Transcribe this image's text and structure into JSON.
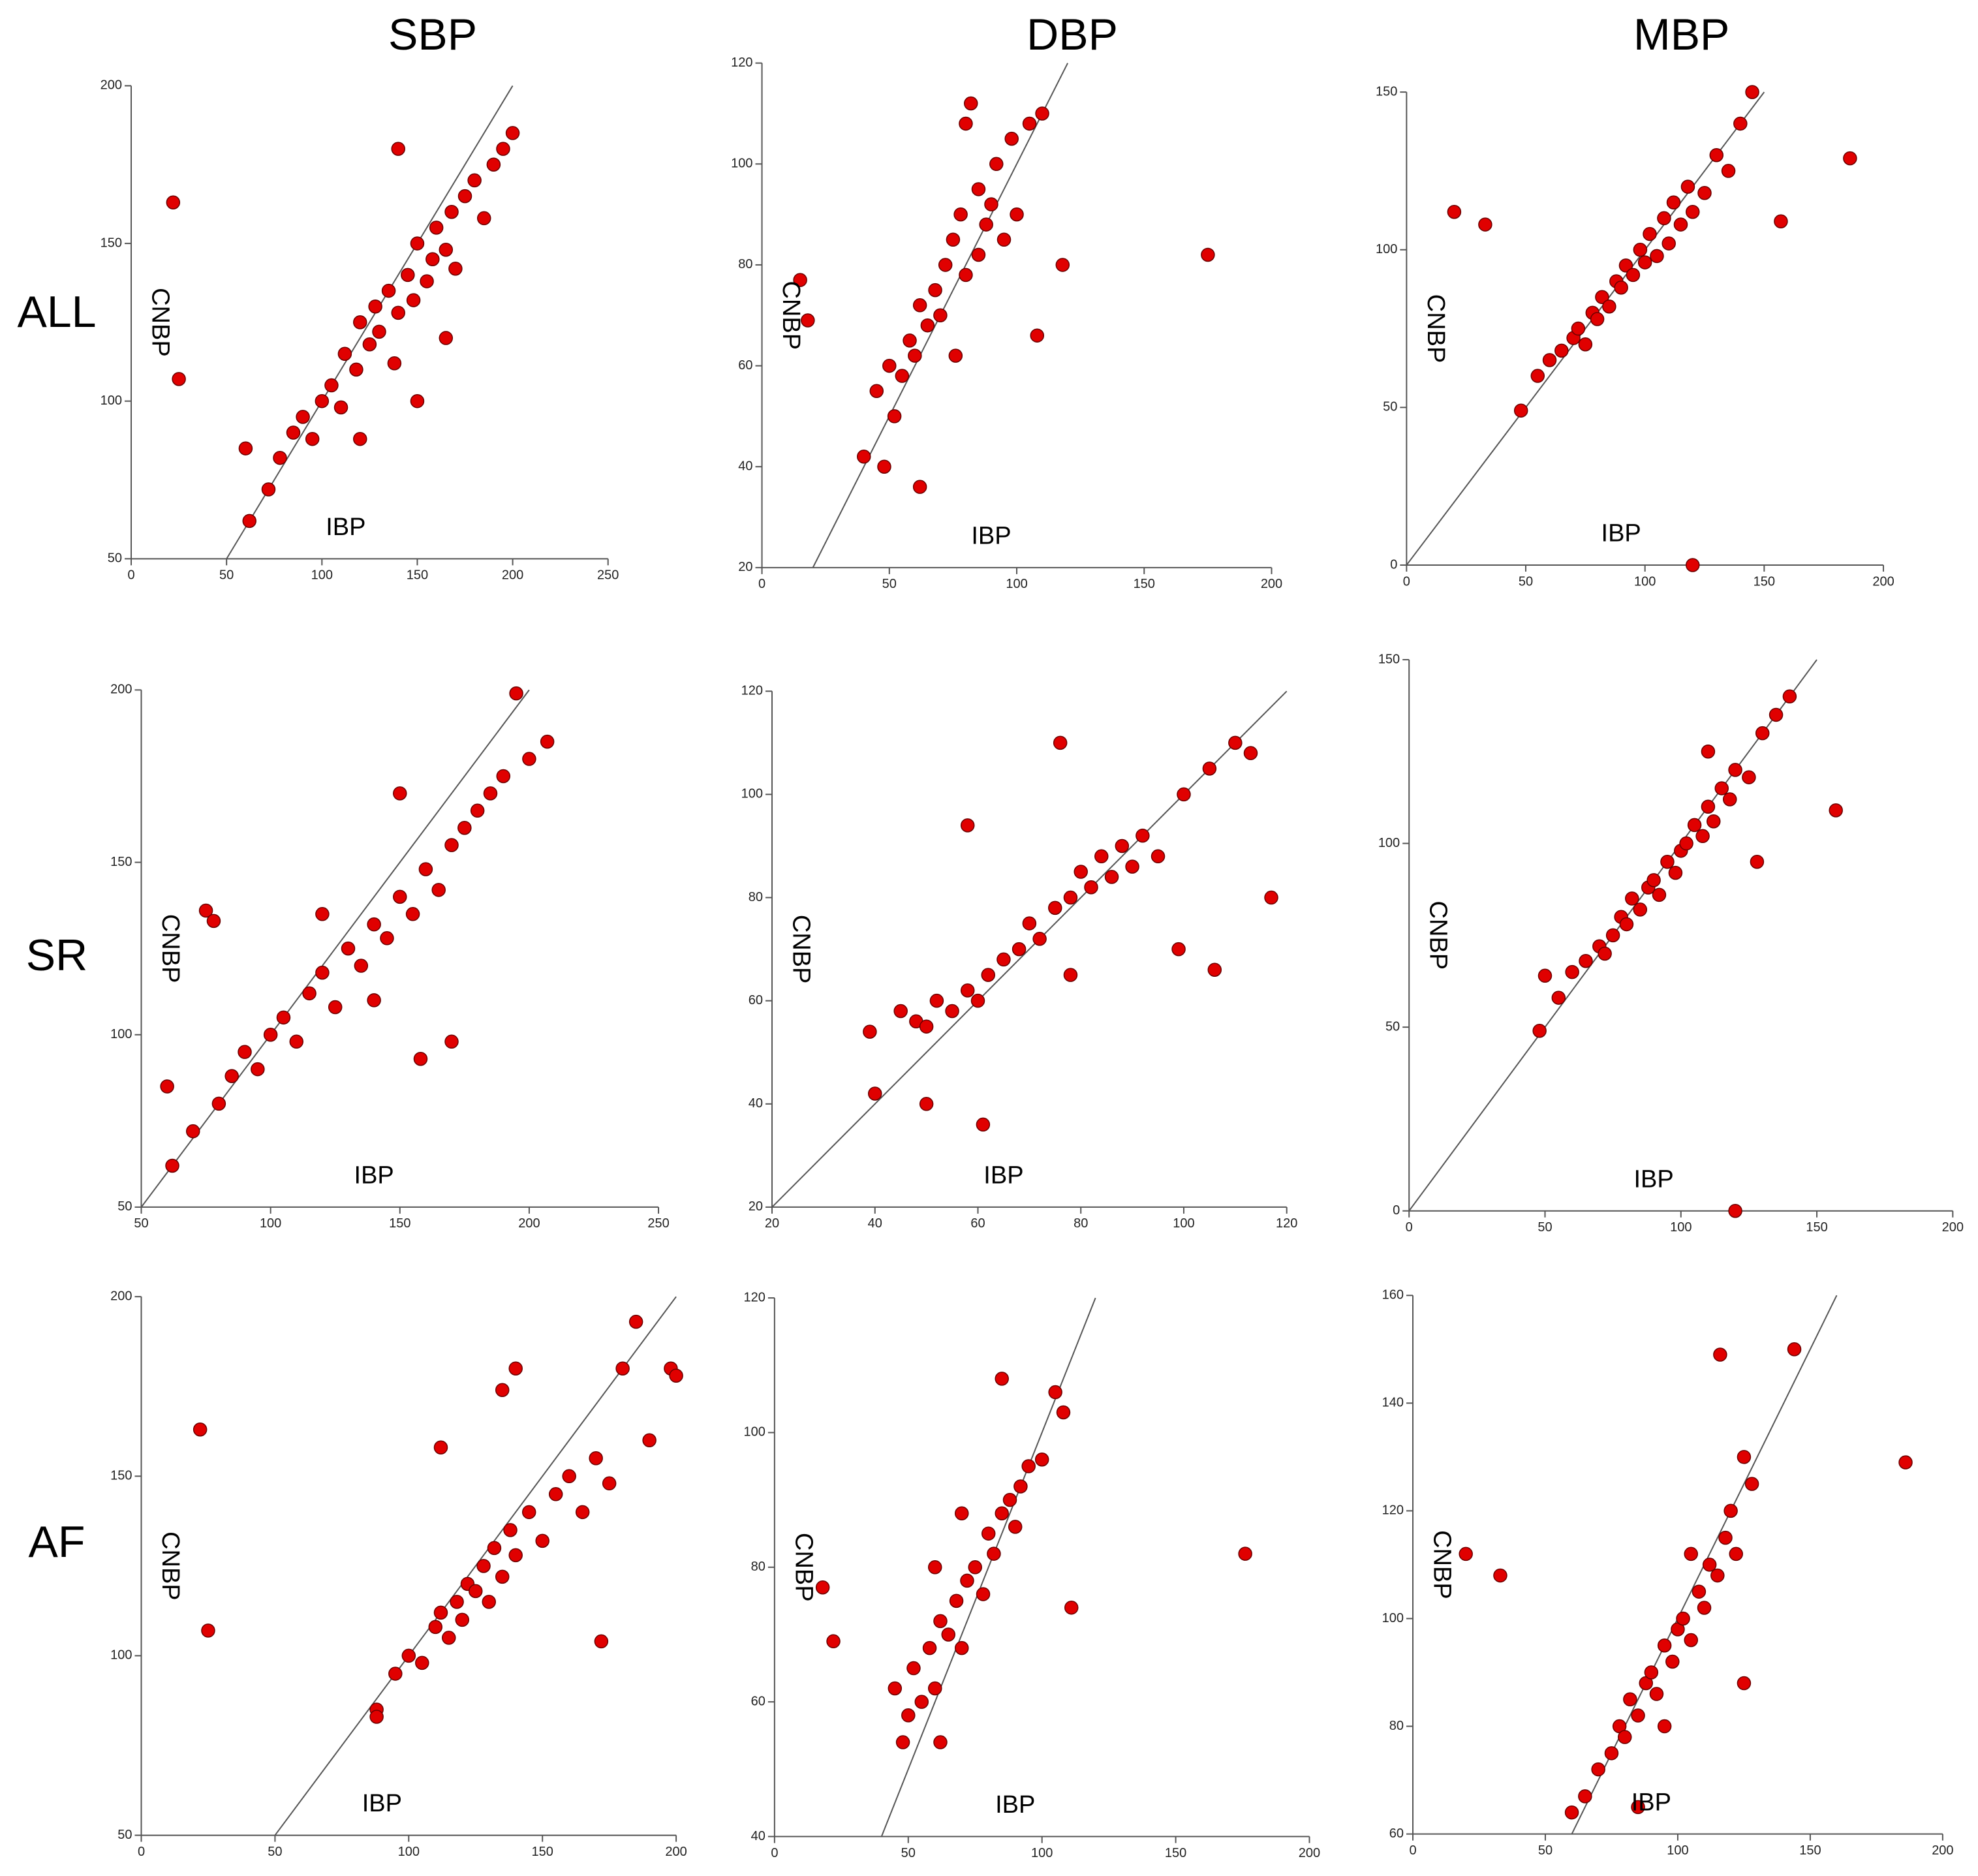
{
  "columns": [
    "SBP",
    "DBP",
    "MBP"
  ],
  "rows": [
    "ALL",
    "SR",
    "AF"
  ],
  "chart_data": [
    {
      "type": "scatter",
      "xlabel": "IBP",
      "ylabel": "CNBP",
      "color": "#e00000",
      "identity_line": true,
      "xlim": [
        0,
        250
      ],
      "xticks": [
        0,
        50,
        100,
        150,
        200,
        250
      ],
      "ylim": [
        50,
        200
      ],
      "yticks": [
        50,
        100,
        150,
        200
      ],
      "x": [
        22,
        25,
        60,
        62,
        72,
        78,
        85,
        90,
        95,
        100,
        105,
        110,
        112,
        118,
        120,
        125,
        128,
        130,
        135,
        138,
        140,
        145,
        148,
        150,
        155,
        158,
        160,
        165,
        168,
        170,
        175,
        180,
        185,
        190,
        195,
        200,
        140,
        120,
        150,
        165
      ],
      "values": [
        163,
        107,
        85,
        62,
        72,
        82,
        90,
        95,
        88,
        100,
        105,
        98,
        115,
        110,
        125,
        118,
        130,
        122,
        135,
        112,
        128,
        140,
        132,
        150,
        138,
        145,
        155,
        148,
        160,
        142,
        165,
        170,
        158,
        175,
        180,
        185,
        180,
        88,
        100,
        120
      ]
    },
    {
      "type": "scatter",
      "xlabel": "IBP",
      "ylabel": "CNBP",
      "color": "#e00000",
      "identity_line": true,
      "xlim": [
        0,
        200
      ],
      "xticks": [
        0,
        50,
        100,
        150,
        200
      ],
      "ylim": [
        20,
        120
      ],
      "yticks": [
        20,
        40,
        60,
        80,
        100,
        120
      ],
      "x": [
        15,
        18,
        175,
        62,
        48,
        40,
        45,
        50,
        52,
        55,
        58,
        60,
        62,
        65,
        68,
        70,
        72,
        75,
        76,
        78,
        80,
        80,
        82,
        85,
        85,
        88,
        90,
        92,
        95,
        98,
        100,
        105,
        110,
        118,
        108
      ],
      "values": [
        77,
        69,
        82,
        36,
        40,
        42,
        55,
        60,
        50,
        58,
        65,
        62,
        72,
        68,
        75,
        70,
        80,
        85,
        62,
        90,
        78,
        108,
        112,
        82,
        95,
        88,
        92,
        100,
        85,
        105,
        90,
        108,
        110,
        80,
        66
      ]
    },
    {
      "type": "scatter",
      "xlabel": "IBP",
      "ylabel": "CNBP",
      "color": "#e00000",
      "identity_line": true,
      "xlim": [
        0,
        200
      ],
      "xticks": [
        0,
        50,
        100,
        150,
        200
      ],
      "ylim": [
        0,
        150
      ],
      "yticks": [
        0,
        50,
        100,
        150
      ],
      "x": [
        20,
        33,
        186,
        157,
        120,
        48,
        55,
        60,
        65,
        70,
        72,
        75,
        78,
        80,
        82,
        85,
        88,
        90,
        92,
        95,
        98,
        100,
        102,
        105,
        108,
        110,
        112,
        115,
        118,
        120,
        125,
        130,
        135,
        140,
        145
      ],
      "values": [
        112,
        108,
        129,
        109,
        0,
        49,
        60,
        65,
        68,
        72,
        75,
        70,
        80,
        78,
        85,
        82,
        90,
        88,
        95,
        92,
        100,
        96,
        105,
        98,
        110,
        102,
        115,
        108,
        120,
        112,
        118,
        130,
        125,
        140,
        150
      ]
    },
    {
      "type": "scatter",
      "xlabel": "IBP",
      "ylabel": "CNBP",
      "color": "#e00000",
      "identity_line": true,
      "xlim": [
        50,
        250
      ],
      "xticks": [
        50,
        100,
        150,
        200,
        250
      ],
      "ylim": [
        50,
        200
      ],
      "yticks": [
        50,
        100,
        150,
        200
      ],
      "x": [
        60,
        62,
        75,
        78,
        158,
        170,
        150,
        195,
        70,
        80,
        85,
        90,
        95,
        100,
        105,
        110,
        115,
        120,
        125,
        130,
        135,
        140,
        145,
        150,
        155,
        160,
        165,
        170,
        175,
        180,
        185,
        190,
        200,
        207,
        120,
        140
      ],
      "values": [
        85,
        62,
        136,
        133,
        93,
        98,
        170,
        199,
        72,
        80,
        88,
        95,
        90,
        100,
        105,
        98,
        112,
        118,
        108,
        125,
        120,
        132,
        128,
        140,
        135,
        148,
        142,
        155,
        160,
        165,
        170,
        175,
        180,
        185,
        135,
        110
      ]
    },
    {
      "type": "scatter",
      "xlabel": "IBP",
      "ylabel": "CNBP",
      "color": "#e00000",
      "identity_line": true,
      "xlim": [
        20,
        120
      ],
      "xticks": [
        20,
        40,
        60,
        80,
        100,
        120
      ],
      "ylim": [
        20,
        120
      ],
      "yticks": [
        20,
        40,
        60,
        80,
        100,
        120
      ],
      "x": [
        39,
        40,
        50,
        61,
        117,
        106,
        99,
        113,
        45,
        48,
        50,
        52,
        55,
        58,
        60,
        62,
        65,
        68,
        70,
        72,
        75,
        76,
        78,
        80,
        82,
        84,
        86,
        88,
        90,
        92,
        95,
        100,
        105,
        110,
        78,
        58
      ],
      "values": [
        54,
        42,
        40,
        36,
        80,
        66,
        70,
        108,
        58,
        56,
        55,
        60,
        58,
        62,
        60,
        65,
        68,
        70,
        75,
        72,
        78,
        110,
        80,
        85,
        82,
        88,
        84,
        90,
        86,
        92,
        88,
        100,
        105,
        110,
        65,
        94
      ]
    },
    {
      "type": "scatter",
      "xlabel": "IBP",
      "ylabel": "CNBP",
      "color": "#e00000",
      "identity_line": true,
      "xlim": [
        0,
        200
      ],
      "xticks": [
        0,
        50,
        100,
        150,
        200
      ],
      "ylim": [
        0,
        150
      ],
      "yticks": [
        0,
        50,
        100,
        150
      ],
      "x": [
        48,
        157,
        120,
        50,
        55,
        60,
        65,
        70,
        72,
        75,
        78,
        80,
        82,
        85,
        88,
        90,
        92,
        95,
        98,
        100,
        102,
        105,
        108,
        110,
        112,
        115,
        118,
        120,
        125,
        130,
        135,
        140,
        128,
        110
      ],
      "values": [
        49,
        109,
        0,
        64,
        58,
        65,
        68,
        72,
        70,
        75,
        80,
        78,
        85,
        82,
        88,
        90,
        86,
        95,
        92,
        98,
        100,
        105,
        102,
        110,
        106,
        115,
        112,
        120,
        118,
        130,
        135,
        140,
        95,
        125
      ]
    },
    {
      "type": "scatter",
      "xlabel": "IBP",
      "ylabel": "CNBP",
      "color": "#e00000",
      "identity_line": true,
      "xlim": [
        0,
        200
      ],
      "xticks": [
        0,
        50,
        100,
        150,
        200
      ],
      "ylim": [
        50,
        200
      ],
      "yticks": [
        50,
        100,
        150,
        200
      ],
      "x": [
        22,
        25,
        88,
        88,
        172,
        140,
        135,
        185,
        95,
        100,
        105,
        110,
        112,
        115,
        118,
        120,
        122,
        125,
        128,
        130,
        132,
        135,
        138,
        140,
        145,
        150,
        155,
        160,
        165,
        170,
        175,
        180,
        190,
        198,
        200,
        112
      ],
      "values": [
        163,
        107,
        85,
        83,
        104,
        180,
        174,
        193,
        95,
        100,
        98,
        108,
        112,
        105,
        115,
        110,
        120,
        118,
        125,
        115,
        130,
        122,
        135,
        128,
        140,
        132,
        145,
        150,
        140,
        155,
        148,
        180,
        160,
        180,
        178,
        158
      ]
    },
    {
      "type": "scatter",
      "xlabel": "IBP",
      "ylabel": "CNBP",
      "color": "#e00000",
      "identity_line": true,
      "xlim": [
        0,
        200
      ],
      "xticks": [
        0,
        50,
        100,
        150,
        200
      ],
      "ylim": [
        40,
        120
      ],
      "yticks": [
        40,
        60,
        80,
        100,
        120
      ],
      "x": [
        18,
        22,
        176,
        111,
        62,
        48,
        45,
        50,
        52,
        55,
        58,
        60,
        62,
        65,
        68,
        70,
        72,
        75,
        78,
        80,
        82,
        85,
        85,
        88,
        90,
        92,
        95,
        100,
        105,
        108,
        70,
        60
      ],
      "values": [
        77,
        69,
        82,
        74,
        54,
        54,
        62,
        58,
        65,
        60,
        68,
        62,
        72,
        70,
        75,
        68,
        78,
        80,
        76,
        85,
        82,
        88,
        108,
        90,
        86,
        92,
        95,
        96,
        106,
        103,
        88,
        80
      ]
    },
    {
      "type": "scatter",
      "xlabel": "IBP",
      "ylabel": "CNBP",
      "color": "#e00000",
      "identity_line": true,
      "xlim": [
        0,
        200
      ],
      "xticks": [
        0,
        50,
        100,
        150,
        200
      ],
      "ylim": [
        60,
        160
      ],
      "yticks": [
        60,
        80,
        100,
        120,
        140,
        160
      ],
      "x": [
        20,
        33,
        186,
        144,
        116,
        125,
        85,
        60,
        65,
        70,
        75,
        78,
        80,
        82,
        85,
        88,
        90,
        92,
        95,
        98,
        100,
        102,
        105,
        108,
        110,
        112,
        115,
        118,
        120,
        122,
        125,
        128,
        95,
        105
      ],
      "values": [
        112,
        108,
        129,
        150,
        149,
        88,
        65,
        64,
        67,
        72,
        75,
        80,
        78,
        85,
        82,
        88,
        90,
        86,
        95,
        92,
        98,
        100,
        96,
        105,
        102,
        110,
        108,
        115,
        120,
        112,
        130,
        125,
        80,
        112
      ]
    }
  ]
}
